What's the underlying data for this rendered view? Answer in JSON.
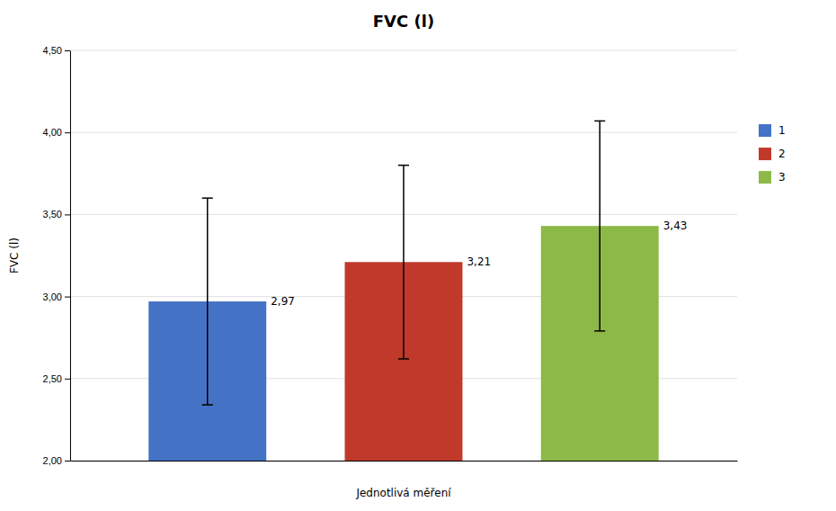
{
  "chart_data": {
    "type": "bar",
    "title": "FVC (l)",
    "xlabel": "Jednotlivá měření",
    "ylabel": "FVC (l)",
    "categories": [
      "1",
      "2",
      "3"
    ],
    "values": [
      2.97,
      3.21,
      3.43
    ],
    "value_labels": [
      "2,97",
      "3,21",
      "3,43"
    ],
    "errors": [
      0.63,
      0.59,
      0.64
    ],
    "colors": [
      "#4472C4",
      "#C0392B",
      "#8DB948"
    ],
    "ylim": [
      2.0,
      4.5
    ],
    "yticks": [
      {
        "value": 2.0,
        "label": "2,00"
      },
      {
        "value": 2.5,
        "label": "2,50"
      },
      {
        "value": 3.0,
        "label": "3,00"
      },
      {
        "value": 3.5,
        "label": "3,50"
      },
      {
        "value": 4.0,
        "label": "4,00"
      },
      {
        "value": 4.5,
        "label": "4,50"
      }
    ],
    "grid": true,
    "data_labels": true,
    "tick_labels": "y",
    "legend": "right"
  }
}
